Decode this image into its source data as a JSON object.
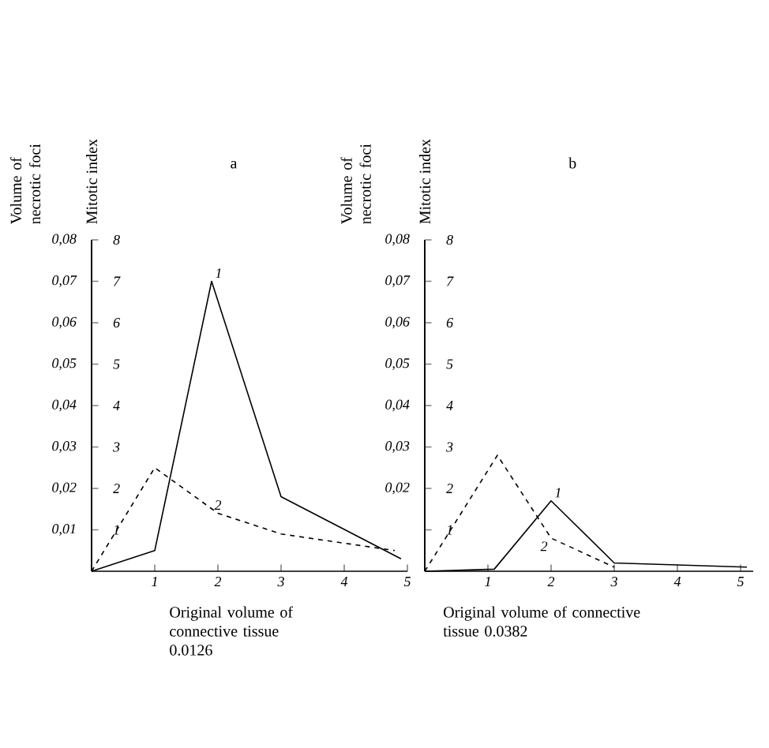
{
  "chart_data": [
    {
      "type": "line",
      "title": "a",
      "ylabel": "Volume of necrotic foci",
      "y2label": "Mitotic index",
      "xlim": [
        0,
        5
      ],
      "xticks": [
        1,
        2,
        3,
        4,
        5
      ],
      "ylim": [
        0,
        0.08
      ],
      "yticks": [
        {
          "value": 0.01,
          "label": "0,01"
        },
        {
          "value": 0.02,
          "label": "0,02"
        },
        {
          "value": 0.03,
          "label": "0,03"
        },
        {
          "value": 0.04,
          "label": "0,04"
        },
        {
          "value": 0.05,
          "label": "0,05"
        },
        {
          "value": 0.06,
          "label": "0,06"
        },
        {
          "value": 0.07,
          "label": "0,07"
        },
        {
          "value": 0.08,
          "label": "0,08"
        }
      ],
      "y2lim": [
        0,
        8
      ],
      "y2ticks": [
        1,
        2,
        3,
        4,
        5,
        6,
        7,
        8
      ],
      "series": [
        {
          "name": "1",
          "color": "#000000",
          "line_style": "solid",
          "axis": "y",
          "x": [
            0,
            1,
            1.9,
            3,
            4.9
          ],
          "values": [
            0,
            0.005,
            0.07,
            0.018,
            0.003
          ]
        },
        {
          "name": "2",
          "color": "#000000",
          "line_style": "dashed",
          "axis": "y2",
          "x": [
            0,
            1,
            2,
            3,
            4.8
          ],
          "values": [
            0,
            2.5,
            1.4,
            0.9,
            0.5
          ]
        }
      ],
      "annotations": [
        "Original volume of connective tissue 0.0126"
      ]
    },
    {
      "type": "line",
      "title": "b",
      "ylabel": "Volume of necrotic foci",
      "y2label": "Mitotic index",
      "xlim": [
        0,
        5.2
      ],
      "xticks": [
        1,
        2,
        3,
        4,
        5
      ],
      "ylim": [
        0,
        0.08
      ],
      "yticks": [
        {
          "value": 0.01,
          "label": null
        },
        {
          "value": 0.02,
          "label": "0,02"
        },
        {
          "value": 0.03,
          "label": "0,03"
        },
        {
          "value": 0.04,
          "label": "0,04"
        },
        {
          "value": 0.05,
          "label": "0,05"
        },
        {
          "value": 0.06,
          "label": "0,06"
        },
        {
          "value": 0.07,
          "label": "0,07"
        },
        {
          "value": 0.08,
          "label": "0,08"
        }
      ],
      "y2lim": [
        0,
        8
      ],
      "y2ticks": [
        1,
        2,
        3,
        4,
        5,
        6,
        7,
        8
      ],
      "series": [
        {
          "name": "1",
          "color": "#000000",
          "line_style": "solid",
          "axis": "y",
          "x": [
            0,
            1.1,
            2,
            3,
            5.1
          ],
          "values": [
            0,
            0.0005,
            0.017,
            0.002,
            0.001
          ]
        },
        {
          "name": "2",
          "color": "#000000",
          "line_style": "dashed",
          "axis": "y2",
          "x": [
            0,
            1.15,
            2,
            3
          ],
          "values": [
            0,
            2.8,
            0.8,
            0.1
          ]
        }
      ],
      "annotations": [
        "Original volume of connective tissue 0.0382"
      ]
    }
  ]
}
